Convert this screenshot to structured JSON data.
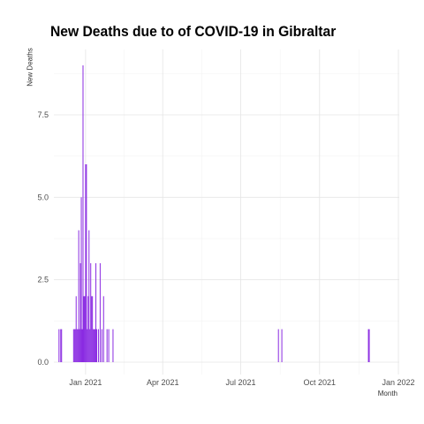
{
  "chart_data": {
    "type": "bar",
    "title": "New Deaths due to of COVID-19 in Gibraltar",
    "xlabel": "Month",
    "ylabel": "New Deaths",
    "x_ticks": [
      "2021-01-01",
      "2021-04-01",
      "2021-07-01",
      "2021-10-01",
      "2022-01-01"
    ],
    "x_tick_labels": [
      "Jan 2021",
      "Apr 2021",
      "Jul 2021",
      "Oct 2021",
      "Jan 2022"
    ],
    "xlim": [
      "2020-11-25",
      "2022-01-02"
    ],
    "y_ticks": [
      0,
      2.5,
      5,
      7.5
    ],
    "y_tick_labels": [
      "0.0",
      "2.5",
      "5.0",
      "7.5"
    ],
    "ylim": [
      0,
      9
    ],
    "grid": true,
    "bar_color": "#8a2be2",
    "series": [
      {
        "dates": [
          "2020-12-01",
          "2020-12-03",
          "2020-12-04",
          "2020-12-18",
          "2020-12-19",
          "2020-12-20",
          "2020-12-21",
          "2020-12-22",
          "2020-12-23",
          "2020-12-24",
          "2020-12-25",
          "2020-12-26",
          "2020-12-27",
          "2020-12-28",
          "2020-12-29",
          "2020-12-30",
          "2020-12-31",
          "2021-01-01",
          "2021-01-02",
          "2021-01-03",
          "2021-01-04",
          "2021-01-05",
          "2021-01-06",
          "2021-01-07",
          "2021-01-08",
          "2021-01-09",
          "2021-01-10",
          "2021-01-11",
          "2021-01-12",
          "2021-01-13",
          "2021-01-14",
          "2021-01-16",
          "2021-01-18",
          "2021-01-20",
          "2021-01-22",
          "2021-01-26",
          "2021-01-28",
          "2021-02-02",
          "2021-08-14",
          "2021-08-18",
          "2021-11-27",
          "2021-11-28"
        ],
        "values": [
          1,
          1,
          1,
          1,
          1,
          1,
          2,
          1,
          1,
          4,
          1,
          3,
          5,
          1,
          9,
          2,
          2,
          6,
          6,
          1,
          2,
          4,
          1,
          3,
          2,
          2,
          1,
          1,
          1,
          3,
          1,
          1,
          3,
          1,
          2,
          1,
          1,
          1,
          1,
          1,
          1,
          1
        ]
      }
    ]
  }
}
